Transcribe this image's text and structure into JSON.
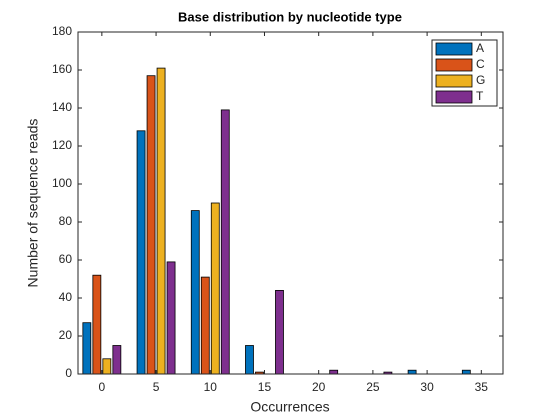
{
  "chart_data": {
    "type": "bar",
    "title": "Base distribution by nucleotide type",
    "x_label": "Occurrences",
    "y_label": "Number of sequence reads",
    "x": [
      0,
      5,
      10,
      15,
      20,
      25,
      30,
      35
    ],
    "series": [
      {
        "name": "A",
        "color": "#0072BD",
        "values": [
          27,
          128,
          86,
          15,
          0,
          0,
          2,
          2
        ]
      },
      {
        "name": "C",
        "color": "#D95319",
        "values": [
          52,
          157,
          51,
          1,
          0,
          0,
          0,
          0
        ]
      },
      {
        "name": "G",
        "color": "#EDB120",
        "values": [
          8,
          161,
          90,
          0,
          0,
          0,
          0,
          0
        ]
      },
      {
        "name": "T",
        "color": "#7E2F8E",
        "values": [
          15,
          59,
          139,
          44,
          2,
          1,
          0,
          0
        ]
      }
    ],
    "xlim": [
      -2.2,
      37
    ],
    "ylim": [
      0,
      180
    ],
    "xticks": [
      0,
      5,
      10,
      15,
      20,
      25,
      30,
      35
    ],
    "yticks": [
      0,
      20,
      40,
      60,
      80,
      100,
      120,
      140,
      160,
      180
    ],
    "grid": false,
    "legend": "top-right"
  }
}
